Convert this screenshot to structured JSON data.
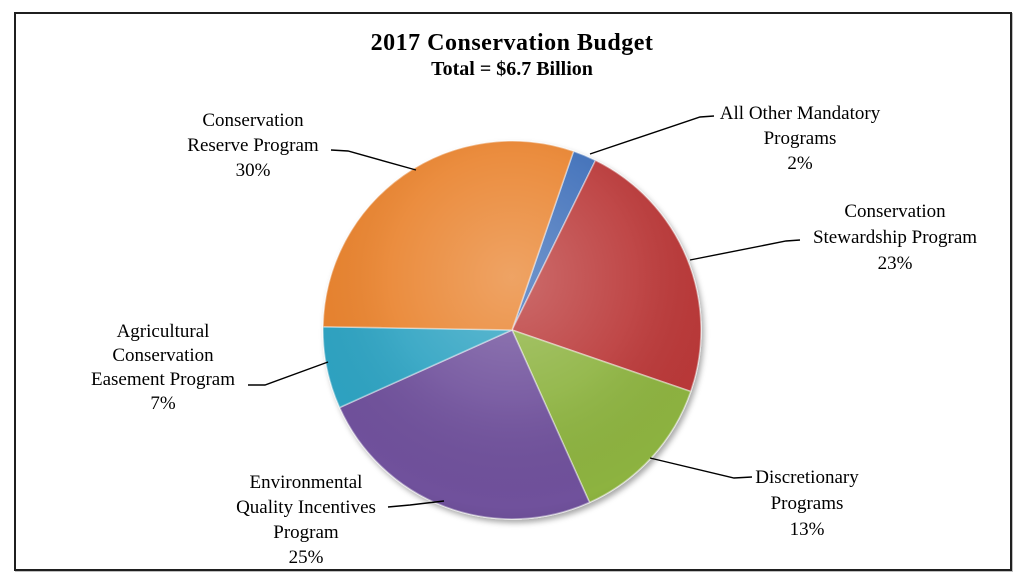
{
  "chart_data": {
    "type": "pie",
    "title": "2017 Conservation Budget",
    "subtitle": "Total = $6.7 Billion",
    "total": "$6.7 Billion",
    "units": "percent",
    "start_angle_deg": 19,
    "direction": "clockwise",
    "legend": "none (leader-line callout labels)",
    "border_color": "#1f1f1f",
    "leader_line_color": "#000000",
    "slices": [
      {
        "label": "All Other Mandatory Programs",
        "value": 2,
        "percent_text": "2%",
        "color": "#3D6EB9",
        "label_lines": [
          "All Other Mandatory",
          "Programs",
          "2%"
        ]
      },
      {
        "label": "Conservation Stewardship Program",
        "value": 23,
        "percent_text": "23%",
        "color": "#BA3938",
        "label_lines": [
          "Conservation",
          "Stewardship Program",
          "23%"
        ]
      },
      {
        "label": "Discretionary Programs",
        "value": 13,
        "percent_text": "13%",
        "color": "#8DB33F",
        "label_lines": [
          "Discretionary",
          "Programs",
          "13%"
        ]
      },
      {
        "label": "Environmental Quality Incentives Program",
        "value": 25,
        "percent_text": "25%",
        "color": "#6F519C",
        "label_lines": [
          "Environmental",
          "Quality Incentives",
          "Program",
          "25%"
        ]
      },
      {
        "label": "Agricultural Conservation Easement Program",
        "value": 7,
        "percent_text": "7%",
        "color": "#2FA3C2",
        "label_lines": [
          "Agricultural",
          "Conservation",
          "Easement Program",
          "7%"
        ]
      },
      {
        "label": "Conservation Reserve Program",
        "value": 30,
        "percent_text": "30%",
        "color": "#E9832F",
        "label_lines": [
          "Conservation",
          "Reserve Program",
          "30%"
        ]
      }
    ]
  }
}
